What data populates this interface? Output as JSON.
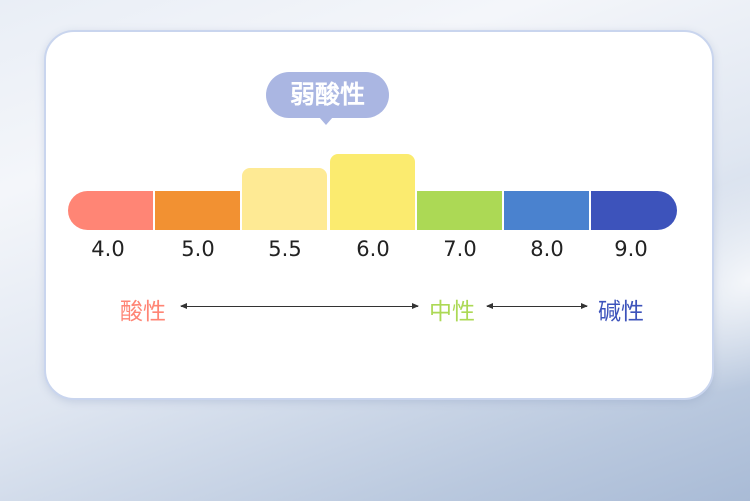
{
  "bubble": {
    "label": "弱酸性",
    "color": "#aab6e2"
  },
  "scale": [
    {
      "value": "4.0",
      "color": "#ff8575",
      "raised": false
    },
    {
      "value": "5.0",
      "color": "#f29132",
      "raised": false
    },
    {
      "value": "5.5",
      "color": "#feea94",
      "raised": true
    },
    {
      "value": "6.0",
      "color": "#fbeb6f",
      "raised": true
    },
    {
      "value": "7.0",
      "color": "#acd955",
      "raised": false
    },
    {
      "value": "8.0",
      "color": "#4a82cf",
      "raised": false
    },
    {
      "value": "9.0",
      "color": "#3d53bb",
      "raised": false
    }
  ],
  "categories": [
    {
      "label": "酸性",
      "color": "#ff8575"
    },
    {
      "label": "中性",
      "color": "#acd955"
    },
    {
      "label": "碱性",
      "color": "#3d53bb"
    }
  ]
}
